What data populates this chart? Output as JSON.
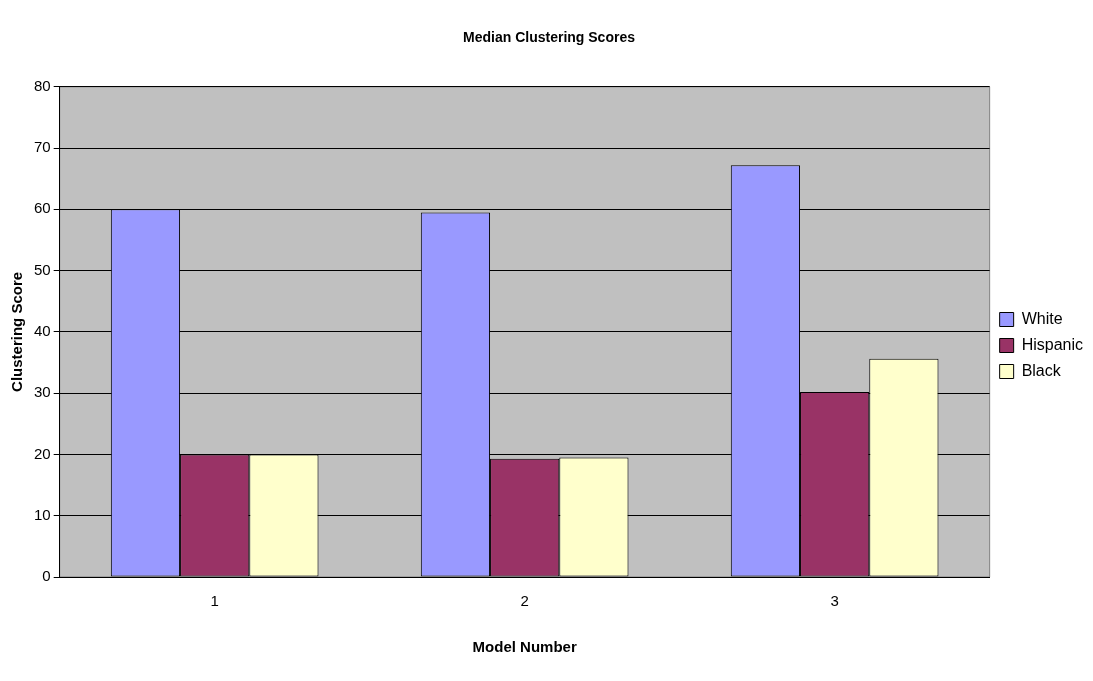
{
  "chart_data": {
    "type": "bar",
    "title": "Median Clustering Scores",
    "xlabel": "Model Number",
    "ylabel": "Clustering Score",
    "categories": [
      "1",
      "2",
      "3"
    ],
    "series": [
      {
        "name": "White",
        "color": "#9999ff",
        "values": [
          60,
          59.5,
          67.2
        ]
      },
      {
        "name": "Hispanic",
        "color": "#993366",
        "values": [
          20,
          19.3,
          30.2
        ]
      },
      {
        "name": "Black",
        "color": "#ffffcc",
        "values": [
          20,
          19.5,
          35.6
        ]
      }
    ],
    "ylim": [
      0,
      80
    ],
    "yticks": [
      0,
      10,
      20,
      30,
      40,
      50,
      60,
      70,
      80
    ],
    "grid": "y",
    "legend": "right"
  }
}
